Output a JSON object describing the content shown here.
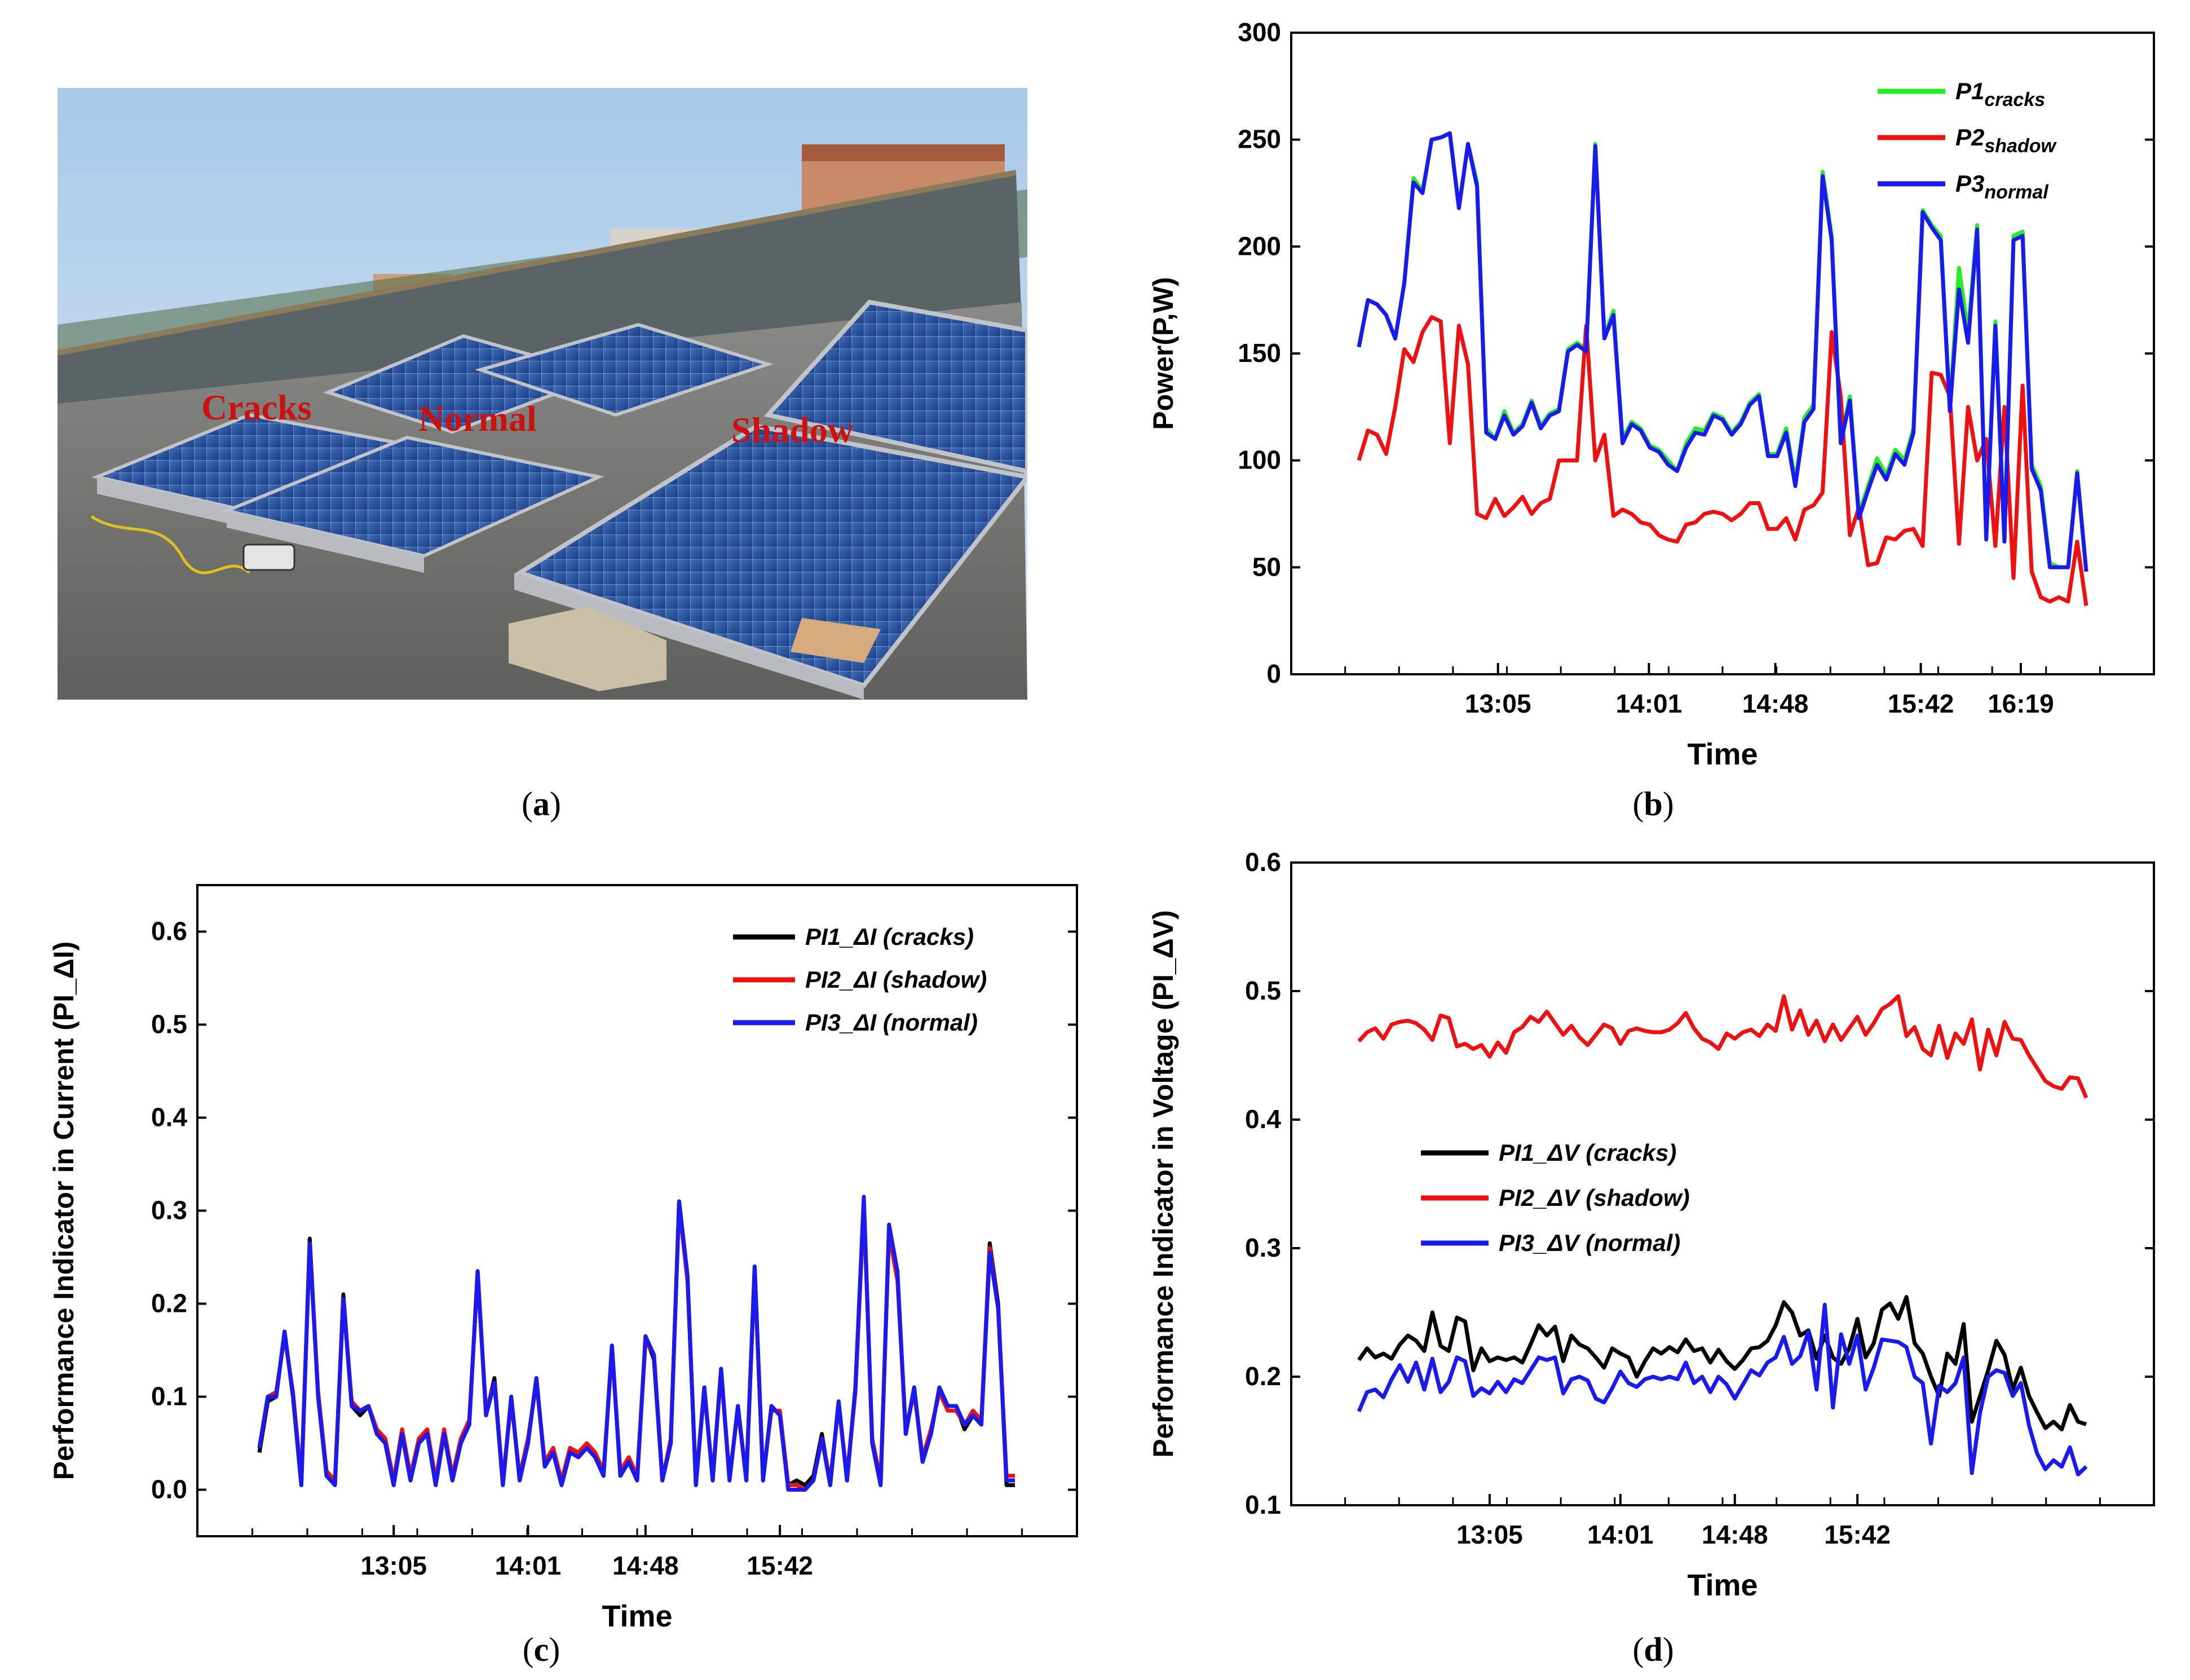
{
  "panels": {
    "a": {
      "caption_letter": "a",
      "labels": [
        "Cracks",
        "Normal",
        "Shadow"
      ]
    },
    "b": {
      "caption_letter": "b"
    },
    "c": {
      "caption_letter": "c"
    },
    "d": {
      "caption_letter": "d"
    }
  },
  "colors": {
    "green": "#22ee22",
    "red": "#ee1111",
    "blue": "#1a1aee",
    "black": "#000000"
  },
  "chart_data": [
    {
      "id": "b",
      "type": "line",
      "title": "",
      "xlabel": "Time",
      "ylabel": "Power(P,W)",
      "ylim": [
        0,
        300
      ],
      "yticks": [
        0,
        50,
        100,
        150,
        200,
        250,
        300
      ],
      "xticks": [
        "13:05",
        "14:01",
        "14:48",
        "15:42",
        "16:19"
      ],
      "xtick_index": [
        15.3,
        31.9,
        45.8,
        61.8,
        72.8
      ],
      "n_points": 74,
      "series": [
        {
          "name": "P1",
          "sub": "cracks",
          "color": "green",
          "values": [
            153,
            175,
            173,
            168,
            157,
            183,
            232,
            226,
            250,
            251,
            253,
            218,
            248,
            230,
            115,
            110,
            123,
            113,
            117,
            128,
            116,
            122,
            124,
            152,
            155,
            152,
            248,
            158,
            170,
            110,
            118,
            115,
            107,
            105,
            100,
            95,
            108,
            115,
            114,
            122,
            120,
            113,
            118,
            127,
            131,
            103,
            103,
            115,
            90,
            120,
            126,
            235,
            205,
            110,
            130,
            75,
            88,
            101,
            93,
            105,
            100,
            115,
            217,
            210,
            205,
            125,
            190,
            160,
            210,
            65,
            165,
            64,
            205,
            207
          ],
          "tail": [
            98,
            88,
            52,
            50,
            50,
            95,
            48
          ]
        },
        {
          "name": "P2",
          "sub": "shadow",
          "color": "red",
          "values": [
            100,
            114,
            112,
            103,
            125,
            152,
            146,
            160,
            167,
            165,
            108,
            163,
            145,
            75,
            73,
            82,
            74,
            78,
            83,
            75,
            80,
            82,
            100,
            100,
            100,
            163,
            100,
            112,
            74,
            77,
            75,
            71,
            70,
            65,
            63,
            62,
            70,
            71,
            75,
            76,
            75,
            72,
            75,
            80,
            80,
            68,
            68,
            73,
            63,
            77,
            79,
            85,
            160,
            130,
            65,
            78,
            51,
            52,
            64,
            63,
            67,
            68,
            60,
            141,
            140,
            130,
            61,
            125,
            100,
            110,
            60,
            125,
            45,
            135
          ],
          "tail": [
            48,
            36,
            34,
            36,
            34,
            62,
            32
          ]
        },
        {
          "name": "P3",
          "sub": "normal",
          "color": "blue",
          "values": [
            153,
            175,
            173,
            168,
            157,
            183,
            230,
            225,
            250,
            251,
            253,
            218,
            248,
            228,
            113,
            110,
            121,
            112,
            116,
            127,
            115,
            121,
            123,
            151,
            154,
            151,
            247,
            157,
            168,
            108,
            117,
            114,
            106,
            104,
            98,
            95,
            106,
            113,
            112,
            121,
            119,
            112,
            117,
            126,
            130,
            102,
            102,
            113,
            88,
            118,
            124,
            233,
            203,
            108,
            128,
            73,
            86,
            98,
            91,
            103,
            98,
            113,
            216,
            209,
            203,
            123,
            180,
            155,
            208,
            63,
            163,
            62,
            203,
            205
          ],
          "tail": [
            96,
            86,
            50,
            50,
            50,
            94,
            48
          ]
        }
      ]
    },
    {
      "id": "c",
      "type": "line",
      "title": "",
      "xlabel": "Time",
      "ylabel": "Performance Indicator in Current (PI_ΔI)",
      "ylim": [
        -0.05,
        0.65
      ],
      "yticks": [
        0.0,
        0.1,
        0.2,
        0.3,
        0.4,
        0.5,
        0.6
      ],
      "xticks": [
        "13:05",
        "14:01",
        "14:48",
        "15:42"
      ],
      "xtick_index": [
        16,
        32,
        46,
        62
      ],
      "series": [
        {
          "name": "PI1_ΔI (cracks)",
          "color": "black",
          "values": [
            0.04,
            0.095,
            0.1,
            0.17,
            0.1,
            0.005,
            0.27,
            0.1,
            0.015,
            0.005,
            0.21,
            0.09,
            0.08,
            0.09,
            0.06,
            0.05,
            0.005,
            0.06,
            0.01,
            0.05,
            0.06,
            0.005,
            0.06,
            0.01,
            0.05,
            0.07,
            0.235,
            0.08,
            0.12,
            0.005,
            0.1,
            0.01,
            0.05,
            0.12,
            0.025,
            0.04,
            0.005,
            0.04,
            0.035,
            0.045,
            0.035,
            0.015,
            0.155,
            0.015,
            0.03,
            0.01,
            0.165,
            0.14,
            0.01,
            0.05,
            0.31,
            0.23,
            0.005,
            0.11,
            0.01,
            0.13,
            0.01,
            0.09,
            0.01,
            0.24,
            0.01,
            0.09,
            0.08,
            0.005,
            0.01,
            0.005,
            0.015,
            0.06,
            0.005,
            0.095,
            0.01,
            0.11,
            0.31,
            0.05,
            0.005,
            0.28,
            0.23,
            0.06,
            0.11,
            0.03,
            0.06,
            0.11,
            0.09,
            0.09,
            0.065,
            0.08,
            0.07,
            0.265,
            0.2,
            0.005,
            0.005
          ]
        },
        {
          "name": "PI2_ΔI (shadow)",
          "color": "red",
          "values": [
            0.045,
            0.1,
            0.105,
            0.165,
            0.105,
            0.01,
            0.265,
            0.105,
            0.02,
            0.01,
            0.205,
            0.095,
            0.085,
            0.09,
            0.065,
            0.055,
            0.01,
            0.065,
            0.015,
            0.055,
            0.065,
            0.01,
            0.065,
            0.015,
            0.055,
            0.075,
            0.23,
            0.085,
            0.115,
            0.01,
            0.095,
            0.015,
            0.055,
            0.115,
            0.03,
            0.045,
            0.01,
            0.045,
            0.04,
            0.05,
            0.04,
            0.02,
            0.15,
            0.02,
            0.035,
            0.015,
            0.16,
            0.145,
            0.01,
            0.055,
            0.305,
            0.225,
            0.01,
            0.105,
            0.015,
            0.125,
            0.015,
            0.085,
            0.015,
            0.235,
            0.015,
            0.085,
            0.085,
            0.005,
            0.005,
            0.0,
            0.01,
            0.055,
            0.01,
            0.09,
            0.015,
            0.105,
            0.305,
            0.055,
            0.01,
            0.275,
            0.225,
            0.065,
            0.105,
            0.035,
            0.065,
            0.105,
            0.085,
            0.085,
            0.07,
            0.085,
            0.075,
            0.26,
            0.195,
            0.015,
            0.015
          ]
        },
        {
          "name": "PI3_ΔI (normal)",
          "color": "blue",
          "values": [
            0.045,
            0.1,
            0.1,
            0.17,
            0.1,
            0.005,
            0.265,
            0.1,
            0.015,
            0.005,
            0.205,
            0.09,
            0.085,
            0.09,
            0.06,
            0.05,
            0.005,
            0.06,
            0.01,
            0.05,
            0.06,
            0.005,
            0.06,
            0.01,
            0.05,
            0.07,
            0.235,
            0.08,
            0.115,
            0.005,
            0.1,
            0.01,
            0.05,
            0.12,
            0.025,
            0.04,
            0.005,
            0.04,
            0.035,
            0.045,
            0.035,
            0.015,
            0.155,
            0.015,
            0.03,
            0.01,
            0.165,
            0.145,
            0.01,
            0.05,
            0.31,
            0.23,
            0.005,
            0.11,
            0.01,
            0.13,
            0.01,
            0.09,
            0.01,
            0.24,
            0.01,
            0.09,
            0.08,
            0.0,
            0.0,
            0.0,
            0.01,
            0.055,
            0.005,
            0.095,
            0.01,
            0.11,
            0.315,
            0.05,
            0.005,
            0.285,
            0.235,
            0.06,
            0.11,
            0.03,
            0.06,
            0.11,
            0.09,
            0.09,
            0.07,
            0.08,
            0.07,
            0.255,
            0.195,
            0.01,
            0.01
          ]
        }
      ]
    },
    {
      "id": "d",
      "type": "line",
      "title": "",
      "xlabel": "Time",
      "ylabel": "Performance Indicator in Voltage (PI_ΔV)",
      "ylim": [
        0.1,
        0.6
      ],
      "yticks": [
        0.1,
        0.2,
        0.3,
        0.4,
        0.5,
        0.6
      ],
      "xticks": [
        "13:05",
        "14:01",
        "14:48",
        "15:42"
      ],
      "xtick_index": [
        16,
        32,
        46,
        61
      ],
      "series": [
        {
          "name": "PI1_ΔV (cracks)",
          "color": "black",
          "values": [
            0.213,
            0.222,
            0.215,
            0.218,
            0.214,
            0.225,
            0.232,
            0.228,
            0.22,
            0.25,
            0.224,
            0.22,
            0.246,
            0.243,
            0.205,
            0.222,
            0.212,
            0.215,
            0.213,
            0.215,
            0.211,
            0.225,
            0.24,
            0.232,
            0.239,
            0.212,
            0.232,
            0.225,
            0.222,
            0.215,
            0.207,
            0.222,
            0.218,
            0.215,
            0.2,
            0.212,
            0.222,
            0.218,
            0.223,
            0.219,
            0.229,
            0.22,
            0.222,
            0.211,
            0.221,
            0.212,
            0.206,
            0.213,
            0.222,
            0.223,
            0.228,
            0.24,
            0.258,
            0.25,
            0.232,
            0.236,
            0.214,
            0.232,
            0.215,
            0.21,
            0.222,
            0.245,
            0.215,
            0.226,
            0.252,
            0.257,
            0.245,
            0.262,
            0.226,
            0.218,
            0.2,
            0.185,
            0.218,
            0.21,
            0.241,
            0.165,
            0.185,
            0.205,
            0.228,
            0.217,
            0.19,
            0.207,
            0.185,
            0.172,
            0.16,
            0.165,
            0.159,
            0.178,
            0.165,
            0.163
          ]
        },
        {
          "name": "PI2_ΔV (shadow)",
          "color": "red",
          "values": [
            0.461,
            0.468,
            0.471,
            0.463,
            0.474,
            0.476,
            0.477,
            0.475,
            0.47,
            0.462,
            0.481,
            0.479,
            0.457,
            0.459,
            0.455,
            0.458,
            0.449,
            0.46,
            0.452,
            0.468,
            0.472,
            0.48,
            0.476,
            0.484,
            0.475,
            0.466,
            0.473,
            0.464,
            0.458,
            0.466,
            0.474,
            0.471,
            0.459,
            0.469,
            0.471,
            0.469,
            0.468,
            0.468,
            0.47,
            0.475,
            0.483,
            0.471,
            0.463,
            0.46,
            0.455,
            0.467,
            0.463,
            0.468,
            0.47,
            0.465,
            0.474,
            0.469,
            0.496,
            0.47,
            0.485,
            0.466,
            0.477,
            0.461,
            0.474,
            0.462,
            0.471,
            0.48,
            0.466,
            0.475,
            0.486,
            0.49,
            0.496,
            0.465,
            0.472,
            0.455,
            0.45,
            0.473,
            0.448,
            0.467,
            0.459,
            0.478,
            0.439,
            0.47,
            0.45,
            0.476,
            0.463,
            0.462,
            0.45,
            0.44,
            0.43,
            0.426,
            0.424,
            0.433,
            0.432,
            0.417
          ]
        },
        {
          "name": "PI3_ΔV (normal)",
          "color": "blue",
          "values": [
            0.173,
            0.188,
            0.19,
            0.184,
            0.198,
            0.209,
            0.196,
            0.211,
            0.19,
            0.214,
            0.188,
            0.196,
            0.215,
            0.212,
            0.185,
            0.191,
            0.187,
            0.196,
            0.188,
            0.198,
            0.195,
            0.205,
            0.215,
            0.213,
            0.215,
            0.187,
            0.198,
            0.2,
            0.197,
            0.183,
            0.18,
            0.191,
            0.204,
            0.195,
            0.192,
            0.198,
            0.2,
            0.198,
            0.2,
            0.198,
            0.211,
            0.195,
            0.2,
            0.188,
            0.2,
            0.194,
            0.183,
            0.194,
            0.205,
            0.201,
            0.211,
            0.215,
            0.231,
            0.21,
            0.216,
            0.235,
            0.19,
            0.256,
            0.176,
            0.233,
            0.21,
            0.232,
            0.19,
            0.207,
            0.229,
            0.228,
            0.227,
            0.223,
            0.2,
            0.195,
            0.148,
            0.193,
            0.188,
            0.195,
            0.215,
            0.125,
            0.172,
            0.2,
            0.205,
            0.203,
            0.185,
            0.195,
            0.162,
            0.14,
            0.128,
            0.135,
            0.13,
            0.145,
            0.124,
            0.13
          ]
        }
      ]
    }
  ]
}
